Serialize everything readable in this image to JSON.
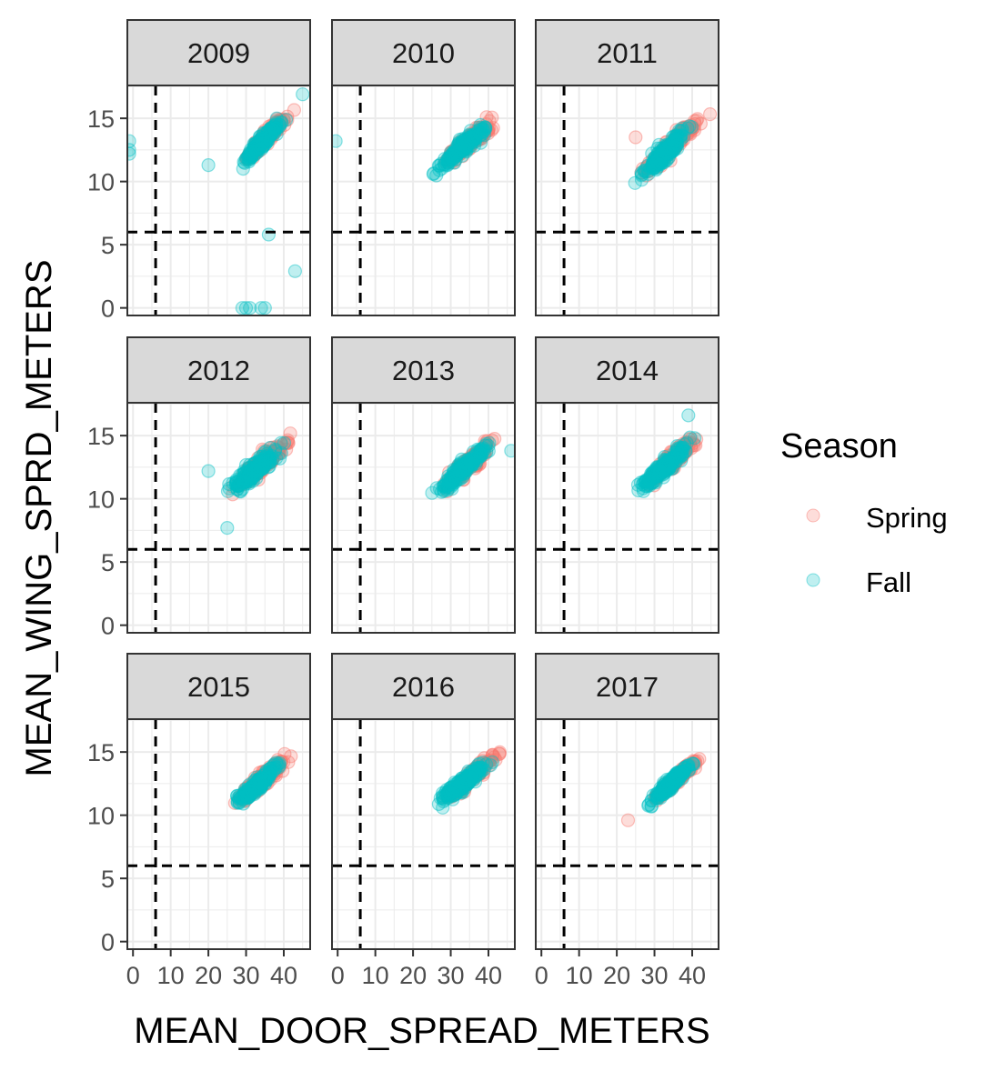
{
  "chart_data": {
    "type": "scatter",
    "facet_by": "year",
    "panels": [
      "2009",
      "2010",
      "2011",
      "2012",
      "2013",
      "2014",
      "2015",
      "2016",
      "2017"
    ],
    "layout": "3x3",
    "xlabel": "MEAN_DOOR_SPREAD_METERS",
    "ylabel": "MEAN_WING_SPRD_METERS",
    "xlim": [
      -1.5,
      47
    ],
    "ylim": [
      -0.6,
      17.6
    ],
    "xticks": [
      0,
      10,
      20,
      30,
      40
    ],
    "xtick_labels": [
      "0",
      "10",
      "20",
      "30",
      "40"
    ],
    "yticks": [
      0,
      5,
      10,
      15
    ],
    "ytick_labels": [
      "0",
      "5",
      "10",
      "15"
    ],
    "reference_lines": {
      "x": 6,
      "y": 6,
      "style": "dashed",
      "color": "#000000"
    },
    "grid": true,
    "legend": {
      "title": "Season",
      "placement": "right",
      "entries": [
        {
          "name": "Spring",
          "color": "#F8766D"
        },
        {
          "name": "Fall",
          "color": "#00BFC4"
        }
      ]
    },
    "point_alpha": 0.25,
    "clusters": {
      "2009": {
        "x_range": [
          24,
          44
        ],
        "y_at_xmin": 9.8,
        "y_at_xmax": 16.3,
        "spread": 0.7
      },
      "2010": {
        "x_range": [
          22,
          45
        ],
        "y_at_xmin": 9.8,
        "y_at_xmax": 15.8,
        "spread": 0.8
      },
      "2011": {
        "x_range": [
          21,
          45
        ],
        "y_at_xmin": 8.8,
        "y_at_xmax": 15.9,
        "spread": 1.0
      },
      "2012": {
        "x_range": [
          21,
          44
        ],
        "y_at_xmin": 9.4,
        "y_at_xmax": 15.2,
        "spread": 1.0
      },
      "2013": {
        "x_range": [
          22,
          45
        ],
        "y_at_xmin": 9.2,
        "y_at_xmax": 15.6,
        "spread": 0.9
      },
      "2014": {
        "x_range": [
          22,
          44
        ],
        "y_at_xmin": 9.6,
        "y_at_xmax": 15.6,
        "spread": 0.9
      },
      "2015": {
        "x_range": [
          22,
          44
        ],
        "y_at_xmin": 9.6,
        "y_at_xmax": 15.3,
        "spread": 0.8
      },
      "2016": {
        "x_range": [
          22,
          45
        ],
        "y_at_xmin": 9.8,
        "y_at_xmax": 15.4,
        "spread": 0.8
      },
      "2017": {
        "x_range": [
          25,
          44
        ],
        "y_at_xmin": 10.0,
        "y_at_xmax": 15.1,
        "spread": 0.6
      }
    },
    "outliers": {
      "2009": [
        {
          "x": -1,
          "y": 12.2,
          "season": "Fall"
        },
        {
          "x": -1,
          "y": 12.5,
          "season": "Fall"
        },
        {
          "x": -1,
          "y": 13.2,
          "season": "Fall"
        },
        {
          "x": 20,
          "y": 11.3,
          "season": "Fall"
        },
        {
          "x": 29,
          "y": 0,
          "season": "Fall"
        },
        {
          "x": 30,
          "y": 0,
          "season": "Fall"
        },
        {
          "x": 31,
          "y": 0,
          "season": "Fall"
        },
        {
          "x": 34,
          "y": 0,
          "season": "Fall"
        },
        {
          "x": 35,
          "y": 0,
          "season": "Fall"
        },
        {
          "x": 36,
          "y": 5.8,
          "season": "Fall"
        },
        {
          "x": 43,
          "y": 2.9,
          "season": "Fall"
        },
        {
          "x": 45,
          "y": 16.9,
          "season": "Fall"
        }
      ],
      "2010": [
        {
          "x": -0.5,
          "y": 13.2,
          "season": "Fall"
        }
      ],
      "2011": [
        {
          "x": 25,
          "y": 13.5,
          "season": "Spring"
        }
      ],
      "2012": [
        {
          "x": 20,
          "y": 12.2,
          "season": "Fall"
        },
        {
          "x": 25,
          "y": 7.7,
          "season": "Fall"
        }
      ],
      "2013": [
        {
          "x": 46,
          "y": 13.8,
          "season": "Fall"
        }
      ],
      "2014": [
        {
          "x": 39,
          "y": 16.6,
          "season": "Fall"
        }
      ],
      "2017": [
        {
          "x": 23,
          "y": 9.6,
          "season": "Spring"
        }
      ]
    }
  }
}
